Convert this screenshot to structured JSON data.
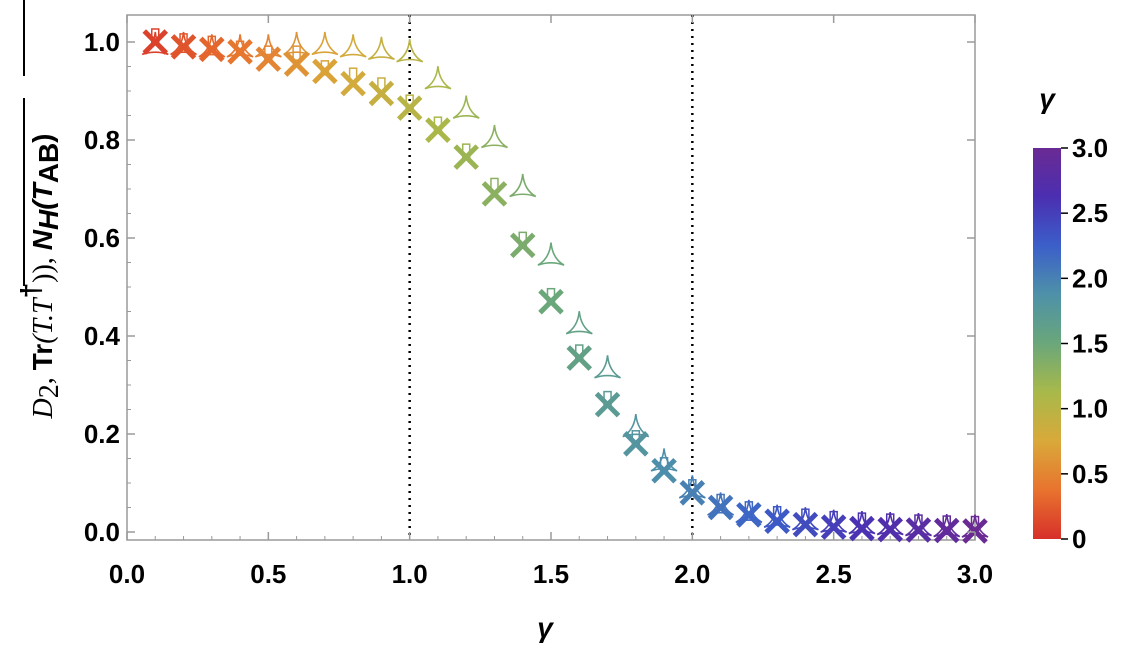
{
  "chart_data": {
    "type": "scatter",
    "xlabel": "γ",
    "ylabel_parts": {
      "d2": "D",
      "d2_sub": "2",
      "sep1": ",",
      "tr_prefix": "Tr",
      "tr_arg": "(T.T",
      "tr_dagger": "†",
      "tr_close": "))",
      "sep2": ",",
      "n_sym": "N",
      "n_sub": "H",
      "n_arg": "(T",
      "n_arg_sub": "AB",
      "n_close": ")"
    },
    "xlim": [
      0,
      3.0
    ],
    "ylim": [
      0,
      1.0
    ],
    "x_ticks": [
      "0.0",
      "0.5",
      "1.0",
      "1.5",
      "2.0",
      "2.5",
      "3.0"
    ],
    "y_ticks": [
      "0.0",
      "0.2",
      "0.4",
      "0.6",
      "0.8",
      "1.0"
    ],
    "reference_lines_x": [
      1.0,
      2.0
    ],
    "grid": false,
    "legend": "colorbar right",
    "colorbar": {
      "title": "γ",
      "range": [
        0,
        3.0
      ],
      "ticks": [
        "0",
        "0.5",
        "1.0",
        "1.5",
        "2.0",
        "2.5",
        "3.0"
      ],
      "colors": [
        "#d7302a",
        "#e8732e",
        "#d9a93a",
        "#a8b94a",
        "#6aa77a",
        "#4e91a8",
        "#3b5fc9",
        "#4b2fb1",
        "#6a2a93"
      ]
    },
    "x": [
      0.1,
      0.2,
      0.3,
      0.4,
      0.5,
      0.6,
      0.7,
      0.8,
      0.9,
      1.0,
      1.1,
      1.2,
      1.3,
      1.4,
      1.5,
      1.6,
      1.7,
      1.8,
      1.9,
      2.0,
      2.1,
      2.2,
      2.3,
      2.4,
      2.5,
      2.6,
      2.7,
      2.8,
      2.9,
      3.0
    ],
    "series": [
      {
        "marker": "cross",
        "values": [
          1.0,
          0.99,
          0.985,
          0.98,
          0.965,
          0.955,
          0.94,
          0.915,
          0.895,
          0.865,
          0.82,
          0.765,
          0.69,
          0.585,
          0.47,
          0.355,
          0.26,
          0.18,
          0.125,
          0.08,
          0.05,
          0.035,
          0.022,
          0.015,
          0.01,
          0.007,
          0.005,
          0.004,
          0.003,
          0.002
        ]
      },
      {
        "marker": "open-tri-star",
        "values": [
          0.99,
          0.99,
          0.985,
          0.985,
          0.985,
          0.99,
          0.99,
          0.985,
          0.98,
          0.975,
          0.92,
          0.86,
          0.8,
          0.7,
          0.56,
          0.42,
          0.33,
          0.21,
          0.14,
          0.085,
          0.05,
          0.035,
          0.025,
          0.02,
          0.015,
          0.012,
          0.01,
          0.008,
          0.006,
          0.005
        ]
      },
      {
        "marker": "open-rect",
        "values": [
          1.0,
          0.99,
          0.985,
          0.975,
          0.965,
          0.965,
          0.935,
          0.92,
          0.9,
          0.865,
          0.82,
          0.765,
          0.695,
          0.585,
          0.47,
          0.355,
          0.26,
          0.18,
          0.125,
          0.08,
          0.05,
          0.035,
          0.025,
          0.02,
          0.015,
          0.012,
          0.01,
          0.008,
          0.006,
          0.005
        ]
      }
    ]
  }
}
